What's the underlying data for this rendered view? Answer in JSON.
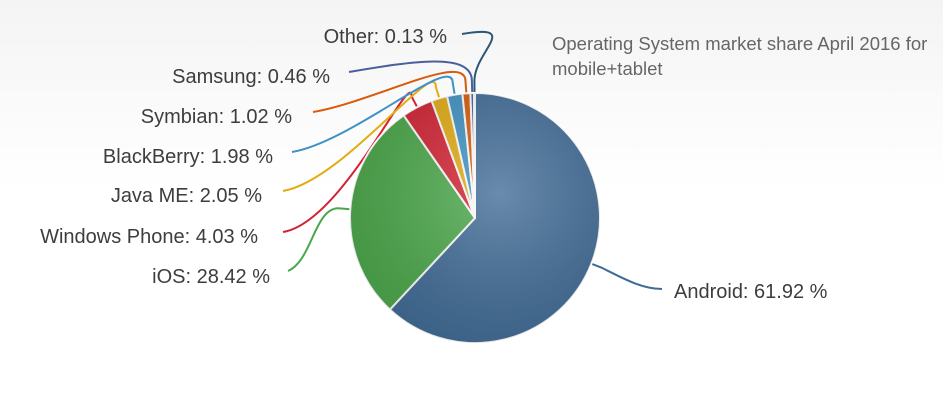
{
  "chart_data": {
    "type": "pie",
    "title": "Operating System market share April 2016 for mobile+tablet",
    "value_suffix": " %",
    "slices": [
      {
        "name": "Android",
        "value": 61.92,
        "display": "61.92",
        "color": "#3f6b96"
      },
      {
        "name": "iOS",
        "value": 28.42,
        "display": "28.42",
        "color": "#4aa84a"
      },
      {
        "name": "Windows Phone",
        "value": 4.03,
        "display": "4.03",
        "color": "#d42232"
      },
      {
        "name": "Java ME",
        "value": 2.05,
        "display": "2.05",
        "color": "#e3ac12"
      },
      {
        "name": "BlackBerry",
        "value": 1.98,
        "display": "1.98",
        "color": "#3f92c4"
      },
      {
        "name": "Symbian",
        "value": 1.02,
        "display": "1.02",
        "color": "#d85a0a"
      },
      {
        "name": "Samsung",
        "value": 0.46,
        "display": "0.46",
        "color": "#4a5f9e"
      },
      {
        "name": "Other",
        "value": 0.13,
        "display": "0.13",
        "color": "#2e5575"
      }
    ]
  }
}
